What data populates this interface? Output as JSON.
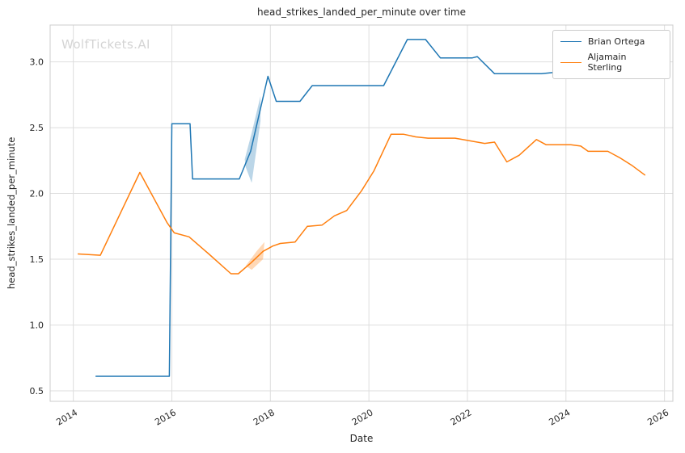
{
  "watermark": {
    "text": "WolfTickets.AI"
  },
  "chart_data": {
    "type": "line",
    "title": "head_strikes_landed_per_minute over time",
    "xlabel": "Date",
    "ylabel": "head_strikes_landed_per_minute",
    "xlim": [
      2013.53,
      2026.17
    ],
    "ylim": [
      0.42,
      3.28
    ],
    "xticks": [
      2014,
      2016,
      2018,
      2020,
      2022,
      2024,
      2026
    ],
    "yticks": [
      0.5,
      1.0,
      1.5,
      2.0,
      2.5,
      3.0
    ],
    "grid": true,
    "legend_position": "upper right",
    "series": [
      {
        "name": "Brian Ortega",
        "color": "#1f77b4",
        "x": [
          2014.46,
          2015.95,
          2016.0,
          2016.37,
          2016.42,
          2017.37,
          2017.6,
          2017.95,
          2018.12,
          2018.6,
          2018.85,
          2020.3,
          2020.78,
          2021.15,
          2021.45,
          2022.1,
          2022.2,
          2022.55,
          2023.5,
          2023.75,
          2024.1,
          2024.25,
          2024.5,
          2024.65,
          2024.95,
          2025.25,
          2025.6
        ],
        "y": [
          0.61,
          0.61,
          2.53,
          2.53,
          2.11,
          2.11,
          2.32,
          2.89,
          2.7,
          2.7,
          2.82,
          2.82,
          3.17,
          3.17,
          3.03,
          3.03,
          3.04,
          2.91,
          2.91,
          2.92,
          2.93,
          2.95,
          2.95,
          2.91,
          2.91,
          2.92,
          2.94
        ]
      },
      {
        "name": "Aljamain Sterling",
        "color": "#ff7f0e",
        "x": [
          2014.1,
          2014.55,
          2015.35,
          2015.9,
          2016.05,
          2016.35,
          2016.75,
          2017.2,
          2017.35,
          2017.6,
          2017.85,
          2018.05,
          2018.2,
          2018.5,
          2018.75,
          2019.05,
          2019.3,
          2019.55,
          2019.85,
          2020.1,
          2020.45,
          2020.7,
          2020.95,
          2021.2,
          2021.75,
          2022.05,
          2022.35,
          2022.55,
          2022.8,
          2023.05,
          2023.4,
          2023.6,
          2024.1,
          2024.3,
          2024.45,
          2024.85,
          2025.1,
          2025.35,
          2025.6
        ],
        "y": [
          1.54,
          1.53,
          2.16,
          1.78,
          1.7,
          1.67,
          1.54,
          1.39,
          1.39,
          1.47,
          1.56,
          1.6,
          1.62,
          1.63,
          1.75,
          1.76,
          1.83,
          1.87,
          2.02,
          2.17,
          2.45,
          2.45,
          2.43,
          2.42,
          2.42,
          2.4,
          2.38,
          2.39,
          2.24,
          2.29,
          2.41,
          2.37,
          2.37,
          2.36,
          2.32,
          2.32,
          2.27,
          2.21,
          2.14
        ]
      }
    ],
    "bands": [
      {
        "color": "#1f77b4",
        "opacity": 0.3,
        "points": [
          [
            2017.48,
            2.26
          ],
          [
            2017.62,
            2.46
          ],
          [
            2017.8,
            2.74
          ],
          [
            2017.8,
            2.55
          ],
          [
            2017.62,
            2.08
          ],
          [
            2017.5,
            2.2
          ]
        ]
      },
      {
        "color": "#ff7f0e",
        "opacity": 0.3,
        "points": [
          [
            2017.5,
            1.45
          ],
          [
            2017.72,
            1.56
          ],
          [
            2017.88,
            1.63
          ],
          [
            2017.85,
            1.5
          ],
          [
            2017.62,
            1.42
          ]
        ]
      }
    ]
  }
}
